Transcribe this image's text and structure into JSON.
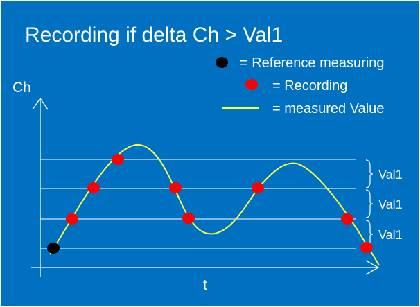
{
  "slide": {
    "title": "Recording if delta Ch > Val1",
    "background_color": "#0070c0",
    "frame_color": "#ffffff"
  },
  "legend": {
    "reference": {
      "label": "= Reference measuring",
      "marker_color": "#000000",
      "marker_shape": "dot"
    },
    "recording": {
      "label": "= Recording",
      "marker_color": "#ff0000",
      "marker_shape": "dot"
    },
    "measured": {
      "label": "= measured Value",
      "line_color": "#ffff40"
    }
  },
  "axes": {
    "y_label": "Ch",
    "x_label": "t",
    "color": "#ffffff"
  },
  "thresholds": {
    "step_label": "Val1",
    "line_color": "#ffffff",
    "labels": [
      "Val1",
      "Val1",
      "Val1"
    ]
  },
  "curve": {
    "color": "#ffff40"
  },
  "markers": {
    "reference_color": "#000000",
    "recording_color": "#ff0000"
  }
}
